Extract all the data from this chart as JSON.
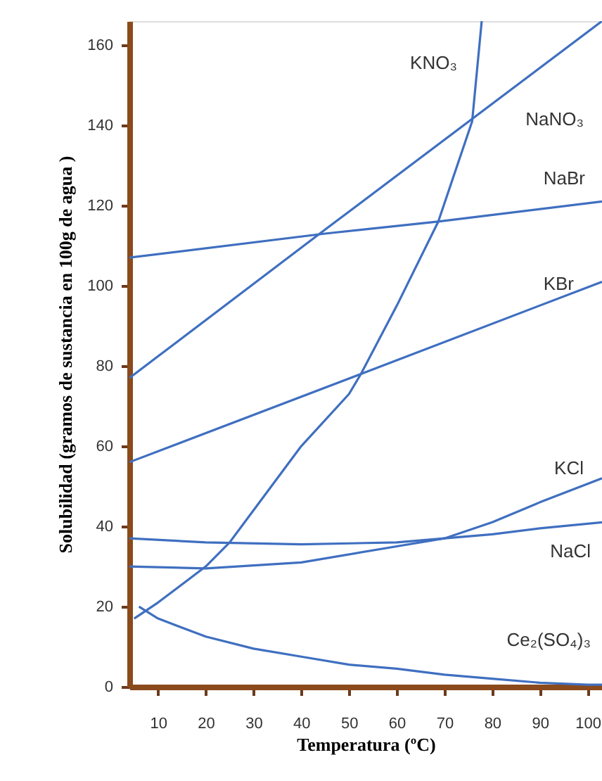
{
  "chart_data": {
    "type": "line",
    "xlabel": "Temperatura (ºC)",
    "ylabel": "Solubilidad (gramos de sustancia en 100g de agua )",
    "xlim": [
      4,
      103
    ],
    "ylim": [
      0,
      166
    ],
    "xticks": [
      10,
      20,
      30,
      40,
      50,
      60,
      70,
      80,
      90,
      100
    ],
    "yticks": [
      0,
      20,
      40,
      60,
      80,
      100,
      120,
      140,
      160
    ],
    "grid": false,
    "marker": "none",
    "line_style": "solid",
    "series": [
      {
        "name": "KNO₃",
        "color": "#3f6fc0",
        "x": [
          5,
          10,
          20,
          25,
          30,
          40,
          50,
          52.5,
          60,
          68.7,
          75.8,
          77.8
        ],
        "values": [
          17,
          21,
          30,
          36,
          44,
          60,
          73,
          78,
          95,
          116,
          141,
          166
        ]
      },
      {
        "name": "NaNO₃",
        "color": "#3f6fc0",
        "x": [
          4,
          45,
          103
        ],
        "values": [
          77,
          114,
          166
        ]
      },
      {
        "name": "NaBr",
        "color": "#3f6fc0",
        "x": [
          4,
          45,
          68.7,
          103
        ],
        "values": [
          107,
          113,
          116,
          121
        ]
      },
      {
        "name": "KBr",
        "color": "#3f6fc0",
        "x": [
          4,
          52.5,
          103
        ],
        "values": [
          56,
          78,
          101
        ]
      },
      {
        "name": "KCl",
        "color": "#3f6fc0",
        "x": [
          4,
          20,
          40,
          60,
          70,
          80,
          90,
          103
        ],
        "values": [
          30,
          29.5,
          31,
          35,
          37,
          41,
          46,
          52
        ]
      },
      {
        "name": "NaCl",
        "color": "#3f6fc0",
        "x": [
          4,
          20,
          40,
          60,
          70,
          80,
          90,
          103
        ],
        "values": [
          37,
          36,
          35.5,
          36,
          37,
          38,
          39.5,
          41
        ]
      },
      {
        "name": "Ce₂(SO₄)₃",
        "color": "#3f6fc0",
        "x": [
          6,
          10,
          20,
          30,
          40,
          50,
          60,
          70,
          80,
          90,
          100,
          103
        ],
        "values": [
          20,
          17,
          12.5,
          9.5,
          7.5,
          5.5,
          4.5,
          3,
          2,
          1,
          0.5,
          0.5
        ]
      }
    ]
  }
}
